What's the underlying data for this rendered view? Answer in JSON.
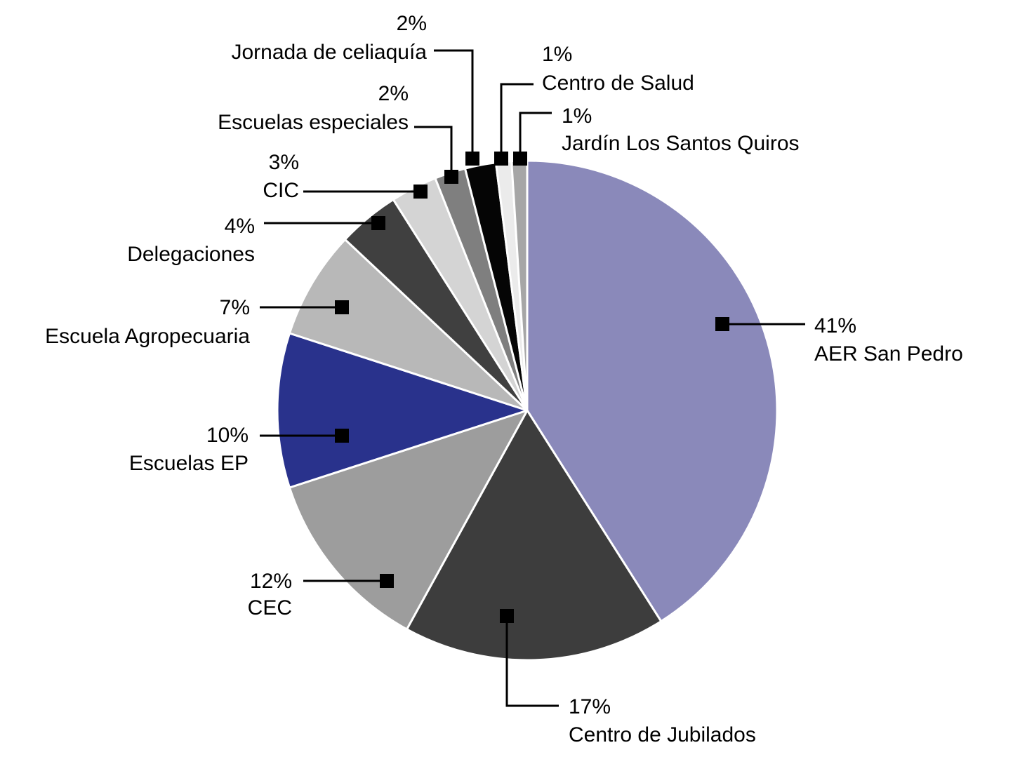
{
  "chart_data": {
    "type": "pie",
    "title": "",
    "start_angle_deg": 0,
    "direction": "clockwise",
    "slices": [
      {
        "label": "AER San Pedro",
        "value": 41,
        "value_label": "41%",
        "color": "#8A89BA"
      },
      {
        "label": "Centro de Jubilados",
        "value": 17,
        "value_label": "17%",
        "color": "#3D3D3D"
      },
      {
        "label": "CEC",
        "value": 12,
        "value_label": "12%",
        "color": "#9D9D9D"
      },
      {
        "label": "Escuelas EP",
        "value": 10,
        "value_label": "10%",
        "color": "#29328C"
      },
      {
        "label": "Escuela Agropecuaria",
        "value": 7,
        "value_label": "7%",
        "color": "#B8B8B8"
      },
      {
        "label": "Delegaciones",
        "value": 4,
        "value_label": "4%",
        "color": "#404040"
      },
      {
        "label": "CIC",
        "value": 3,
        "value_label": "3%",
        "color": "#D4D4D4"
      },
      {
        "label": "Escuelas especiales",
        "value": 2,
        "value_label": "2%",
        "color": "#7F7F7F"
      },
      {
        "label": "Jornada de celiaquía",
        "value": 2,
        "value_label": "2%",
        "color": "#050505"
      },
      {
        "label": "Centro de Salud",
        "value": 1,
        "value_label": "1%",
        "color": "#EBEBEB"
      },
      {
        "label": "Jardín Los Santos Quiros",
        "value": 1,
        "value_label": "1%",
        "color": "#A6A6A6"
      }
    ]
  }
}
